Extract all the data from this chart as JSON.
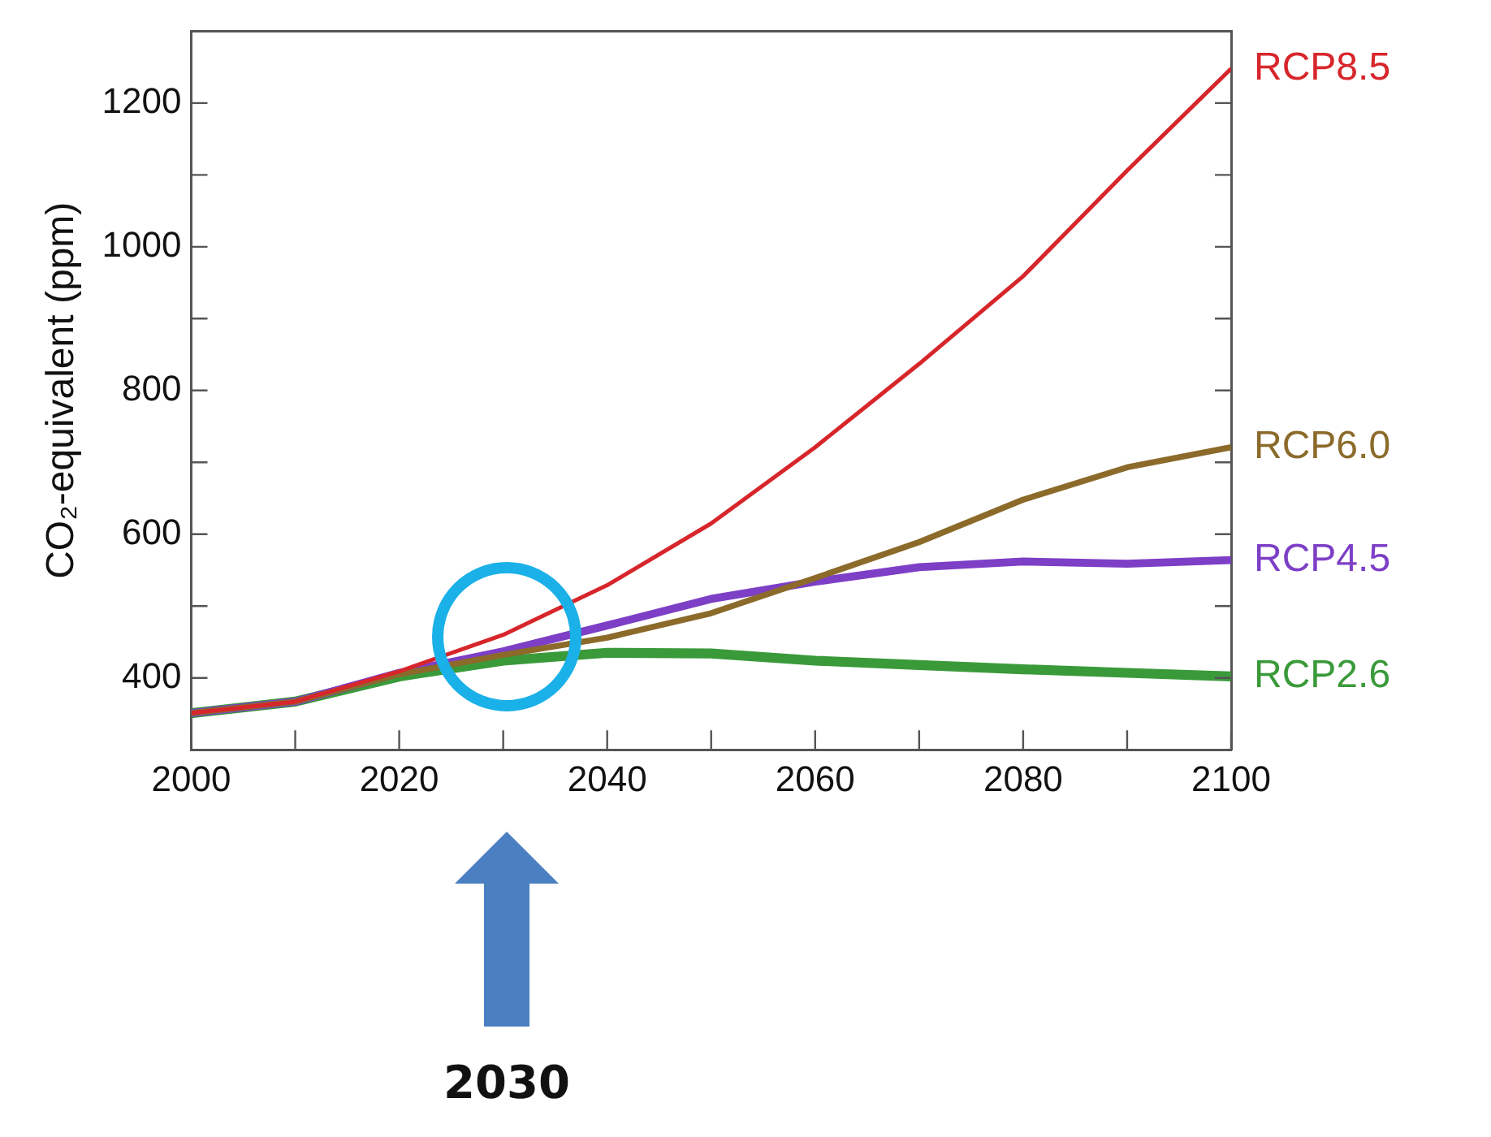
{
  "chart_data": {
    "type": "line",
    "ylabel": "CO₂-equivalent (ppm)",
    "x": [
      2000,
      2010,
      2020,
      2030,
      2040,
      2050,
      2060,
      2070,
      2080,
      2090,
      2100
    ],
    "series": [
      {
        "name": "RCP8.5",
        "color": "#d7262b",
        "values": [
          351,
          367,
          409,
          460,
          529,
          615,
          721,
          837,
          959,
          1106,
          1248
        ]
      },
      {
        "name": "RCP6.0",
        "color": "#8b6a2a",
        "values": [
          351,
          367,
          405,
          432,
          456,
          490,
          539,
          589,
          648,
          693,
          721
        ]
      },
      {
        "name": "RCP4.5",
        "color": "#7d3fc6",
        "values": [
          351,
          367,
          407,
          437,
          473,
          510,
          534,
          554,
          562,
          559,
          564
        ]
      },
      {
        "name": "RCP2.6",
        "color": "#3a9a3a",
        "values": [
          351,
          367,
          402,
          424,
          435,
          434,
          424,
          418,
          412,
          407,
          402
        ]
      }
    ],
    "xlim": [
      2000,
      2100
    ],
    "xticks": [
      2000,
      {
        "value": 2010,
        "label": null
      },
      2020,
      {
        "value": 2030,
        "label": null
      },
      2040,
      {
        "value": 2050,
        "label": null
      },
      2060,
      {
        "value": 2070,
        "label": null
      },
      2080,
      {
        "value": 2090,
        "label": null
      },
      2100
    ],
    "ylim": [
      300,
      1300
    ],
    "yticks": [
      400,
      {
        "value": 500,
        "label": null
      },
      600,
      {
        "value": 700,
        "label": null
      },
      800,
      {
        "value": 900,
        "label": null
      },
      1000,
      {
        "value": 1100,
        "label": null
      },
      1200
    ],
    "grid": false,
    "legend": false,
    "marker": "none",
    "line_style": "solid",
    "annotations": [
      "2030"
    ]
  }
}
